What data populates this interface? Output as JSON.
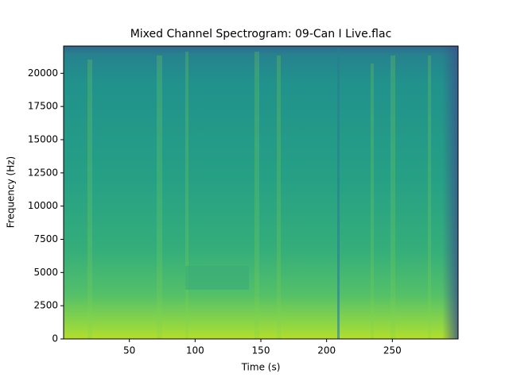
{
  "chart_data": {
    "type": "spectrogram",
    "title": "Mixed Channel Spectrogram: 09-Can I Live.flac",
    "x_label": "Time (s)",
    "y_label": "Frequency (Hz)",
    "xlim": [
      0,
      300
    ],
    "xticks": [
      50,
      100,
      150,
      200,
      250
    ],
    "ylim": [
      0,
      22050
    ],
    "yticks": [
      0,
      2500,
      5000,
      7500,
      10000,
      12500,
      15000,
      17500,
      20000
    ],
    "colormap": "viridis"
  }
}
